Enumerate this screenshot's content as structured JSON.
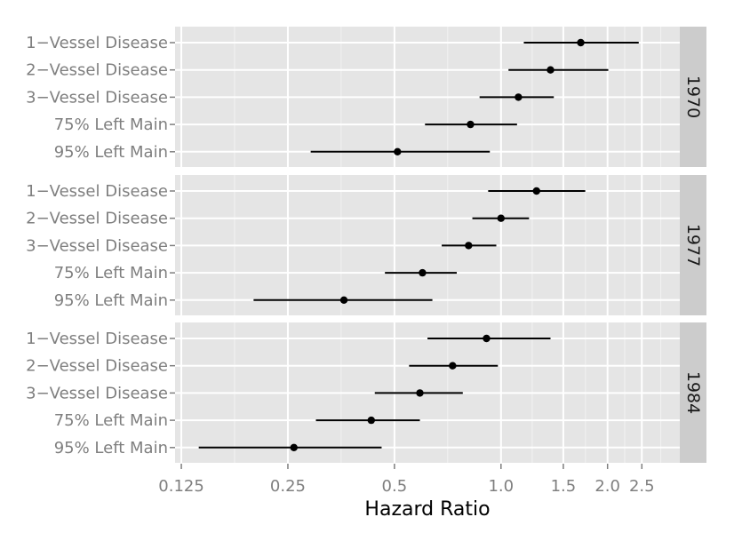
{
  "chart_data": {
    "type": "scatter",
    "title": "",
    "xlabel": "Hazard Ratio",
    "ylabel": "",
    "x_scale": "log",
    "xlim": [
      0.12,
      3.2
    ],
    "x_ticks": [
      0.125,
      0.25,
      0.5,
      1.0,
      1.5,
      2.0,
      2.5
    ],
    "x_tick_labels": [
      "0.125",
      "0.25",
      "0.5",
      "1.0",
      "1.5",
      "2.0",
      "2.5"
    ],
    "categories": [
      "1−Vessel Disease",
      "2−Vessel Disease",
      "3−Vessel Disease",
      "75% Left Main",
      "95% Left Main"
    ],
    "grid": true,
    "legend": "none",
    "panels": [
      {
        "strip": "1970",
        "points": [
          {
            "category": "1−Vessel Disease",
            "estimate": 1.68,
            "lower": 1.16,
            "upper": 2.45
          },
          {
            "category": "2−Vessel Disease",
            "estimate": 1.38,
            "lower": 1.05,
            "upper": 2.01
          },
          {
            "category": "3−Vessel Disease",
            "estimate": 1.12,
            "lower": 0.87,
            "upper": 1.41
          },
          {
            "category": "75% Left Main",
            "estimate": 0.82,
            "lower": 0.61,
            "upper": 1.11
          },
          {
            "category": "95% Left Main",
            "estimate": 0.51,
            "lower": 0.29,
            "upper": 0.93
          }
        ]
      },
      {
        "strip": "1977",
        "points": [
          {
            "category": "1−Vessel Disease",
            "estimate": 1.26,
            "lower": 0.92,
            "upper": 1.73
          },
          {
            "category": "2−Vessel Disease",
            "estimate": 1.0,
            "lower": 0.83,
            "upper": 1.2
          },
          {
            "category": "3−Vessel Disease",
            "estimate": 0.81,
            "lower": 0.68,
            "upper": 0.97
          },
          {
            "category": "75% Left Main",
            "estimate": 0.6,
            "lower": 0.47,
            "upper": 0.75
          },
          {
            "category": "95% Left Main",
            "estimate": 0.36,
            "lower": 0.2,
            "upper": 0.64
          }
        ]
      },
      {
        "strip": "1984",
        "points": [
          {
            "category": "1−Vessel Disease",
            "estimate": 0.91,
            "lower": 0.62,
            "upper": 1.38
          },
          {
            "category": "2−Vessel Disease",
            "estimate": 0.73,
            "lower": 0.55,
            "upper": 0.98
          },
          {
            "category": "3−Vessel Disease",
            "estimate": 0.59,
            "lower": 0.44,
            "upper": 0.78
          },
          {
            "category": "75% Left Main",
            "estimate": 0.43,
            "lower": 0.3,
            "upper": 0.59
          },
          {
            "category": "95% Left Main",
            "estimate": 0.26,
            "lower": 0.14,
            "upper": 0.46
          }
        ]
      }
    ]
  }
}
